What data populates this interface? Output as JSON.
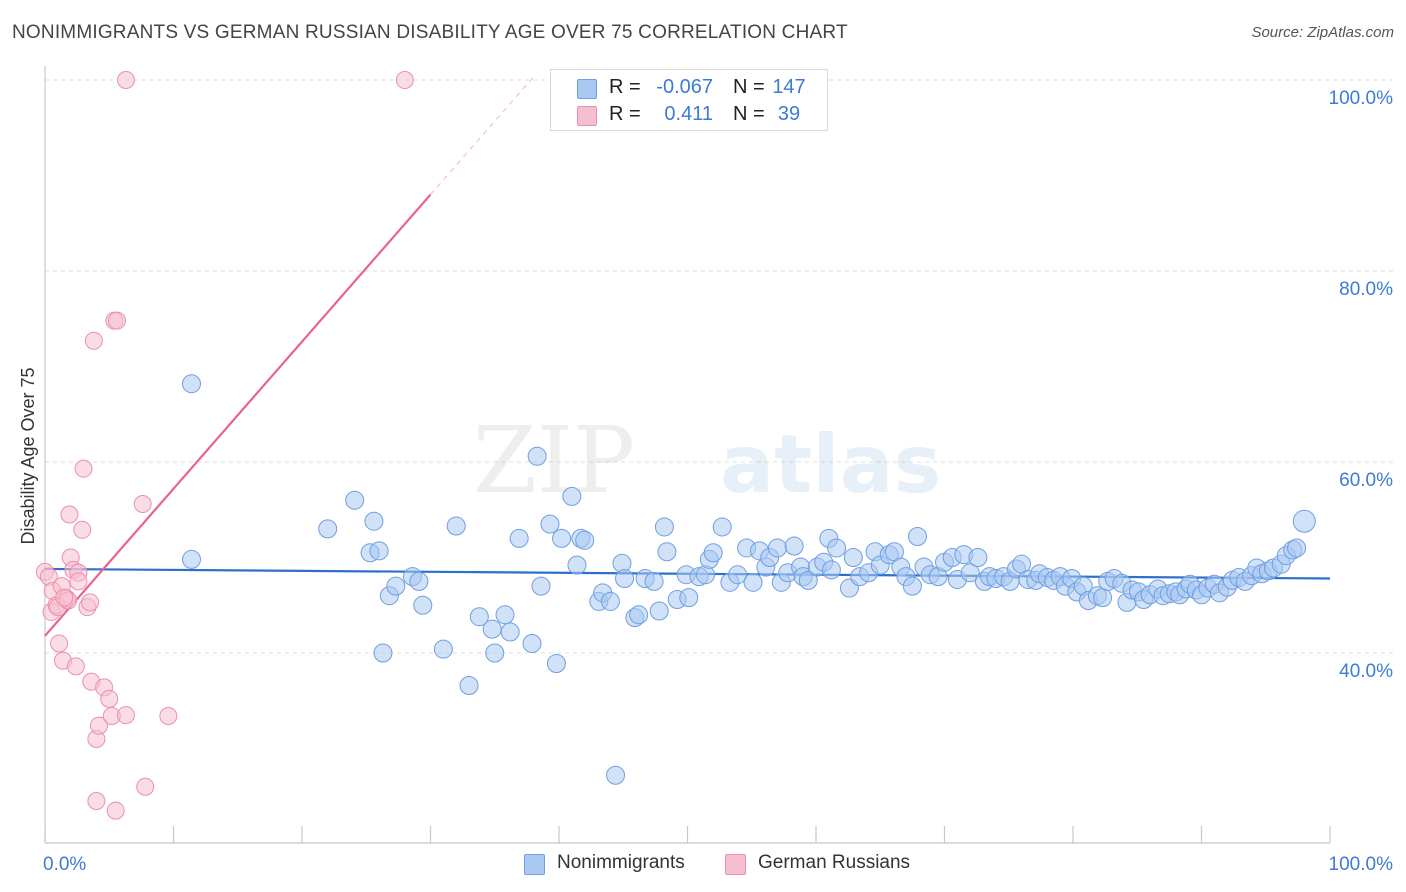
{
  "title": "NONIMMIGRANTS VS GERMAN RUSSIAN DISABILITY AGE OVER 75 CORRELATION CHART",
  "source": "Source: ZipAtlas.com",
  "watermark": {
    "part1": "ZIP",
    "part2": "atlas"
  },
  "legend": {
    "series1": {
      "r_label": "R =",
      "r_value": "-0.067",
      "n_label": "N =",
      "n_value": "147"
    },
    "series2": {
      "r_label": "R =",
      "r_value": "0.411",
      "n_label": "N =",
      "n_value": "39"
    }
  },
  "bottom_legend": {
    "series1": "Nonimmigrants",
    "series2": "German Russians"
  },
  "colors": {
    "blue_fill": "#a9c8f2",
    "blue_stroke": "#6f9fe0",
    "blue_line": "#2d6fcc",
    "pink_fill": "#f6bfd0",
    "pink_stroke": "#ec8fad",
    "pink_line": "#e8648f",
    "tick_text": "#3d7bd4",
    "grid": "#dddddd"
  },
  "chart_data": {
    "type": "scatter",
    "title": "NONIMMIGRANTS VS GERMAN RUSSIAN DISABILITY AGE OVER 75 CORRELATION CHART",
    "xlabel": "",
    "ylabel": "Disability Age Over 75",
    "xlim": [
      0,
      100
    ],
    "ylim": [
      20,
      102
    ],
    "x_tick_labels": [
      "0.0%",
      "100.0%"
    ],
    "y_ticks": [
      40,
      60,
      80,
      100
    ],
    "y_tick_labels": [
      "40.0%",
      "60.0%",
      "80.0%",
      "100.0%"
    ],
    "series": [
      {
        "name": "Nonimmigrants",
        "r": -0.067,
        "n": 147,
        "trend": {
          "x": [
            0,
            100
          ],
          "y": [
            48.8,
            47.8
          ]
        },
        "points": [
          [
            11.4,
            49.8
          ],
          [
            11.4,
            68.2
          ],
          [
            22.0,
            53.0
          ],
          [
            24.1,
            56.0
          ],
          [
            25.3,
            50.5
          ],
          [
            25.6,
            53.8
          ],
          [
            26.0,
            50.7
          ],
          [
            26.3,
            40.0
          ],
          [
            26.8,
            46.0
          ],
          [
            27.3,
            47.0
          ],
          [
            28.6,
            48.0
          ],
          [
            29.1,
            47.5
          ],
          [
            29.4,
            45.0
          ],
          [
            31.0,
            40.4
          ],
          [
            32.0,
            53.3
          ],
          [
            33.0,
            36.6
          ],
          [
            33.8,
            43.8
          ],
          [
            34.8,
            42.5
          ],
          [
            35.0,
            40.0
          ],
          [
            35.8,
            44.0
          ],
          [
            36.2,
            42.2
          ],
          [
            36.9,
            52.0
          ],
          [
            37.9,
            41.0
          ],
          [
            38.3,
            60.6
          ],
          [
            38.6,
            47.0
          ],
          [
            39.3,
            53.5
          ],
          [
            39.8,
            38.9
          ],
          [
            40.2,
            52.0
          ],
          [
            41.0,
            56.4
          ],
          [
            41.4,
            49.2
          ],
          [
            41.7,
            52.0
          ],
          [
            42.0,
            51.8
          ],
          [
            43.1,
            45.4
          ],
          [
            43.4,
            46.3
          ],
          [
            44.0,
            45.4
          ],
          [
            44.4,
            27.2
          ],
          [
            44.9,
            49.4
          ],
          [
            45.1,
            47.8
          ],
          [
            45.9,
            43.7
          ],
          [
            46.2,
            44.0
          ],
          [
            46.7,
            47.8
          ],
          [
            47.4,
            47.5
          ],
          [
            47.8,
            44.4
          ],
          [
            48.2,
            53.2
          ],
          [
            48.4,
            50.6
          ],
          [
            49.2,
            45.6
          ],
          [
            49.9,
            48.2
          ],
          [
            50.1,
            45.8
          ],
          [
            50.9,
            48.0
          ],
          [
            51.4,
            48.2
          ],
          [
            51.7,
            49.8
          ],
          [
            52.0,
            50.5
          ],
          [
            52.7,
            53.2
          ],
          [
            53.3,
            47.4
          ],
          [
            53.9,
            48.2
          ],
          [
            54.6,
            51.0
          ],
          [
            55.1,
            47.4
          ],
          [
            55.6,
            50.7
          ],
          [
            56.1,
            49.0
          ],
          [
            56.4,
            50.0
          ],
          [
            57.0,
            51.0
          ],
          [
            57.3,
            47.4
          ],
          [
            57.8,
            48.4
          ],
          [
            58.3,
            51.2
          ],
          [
            58.8,
            49.0
          ],
          [
            59.0,
            48.0
          ],
          [
            59.4,
            47.6
          ],
          [
            60.1,
            49.0
          ],
          [
            60.6,
            49.5
          ],
          [
            61.0,
            52.0
          ],
          [
            61.2,
            48.7
          ],
          [
            61.6,
            51.0
          ],
          [
            62.6,
            46.8
          ],
          [
            62.9,
            50.0
          ],
          [
            63.4,
            48.0
          ],
          [
            64.1,
            48.4
          ],
          [
            64.6,
            50.6
          ],
          [
            65.0,
            49.2
          ],
          [
            65.7,
            50.3
          ],
          [
            66.1,
            50.6
          ],
          [
            66.6,
            49.0
          ],
          [
            67.0,
            48.0
          ],
          [
            67.5,
            47.0
          ],
          [
            67.9,
            52.2
          ],
          [
            68.4,
            49.0
          ],
          [
            68.9,
            48.2
          ],
          [
            69.5,
            48.0
          ],
          [
            70.0,
            49.5
          ],
          [
            70.6,
            50.0
          ],
          [
            71.0,
            47.7
          ],
          [
            71.5,
            50.3
          ],
          [
            72.0,
            48.4
          ],
          [
            72.6,
            50.0
          ],
          [
            73.1,
            47.5
          ],
          [
            73.5,
            48.0
          ],
          [
            74.0,
            47.8
          ],
          [
            74.6,
            48.0
          ],
          [
            75.1,
            47.5
          ],
          [
            75.6,
            48.8
          ],
          [
            76.0,
            49.3
          ],
          [
            76.5,
            47.7
          ],
          [
            77.1,
            47.6
          ],
          [
            77.4,
            48.3
          ],
          [
            78.0,
            47.9
          ],
          [
            78.5,
            47.6
          ],
          [
            79.0,
            48.0
          ],
          [
            79.4,
            47.0
          ],
          [
            79.9,
            47.8
          ],
          [
            80.3,
            46.4
          ],
          [
            80.8,
            47.0
          ],
          [
            81.2,
            45.5
          ],
          [
            81.9,
            46.0
          ],
          [
            82.3,
            45.8
          ],
          [
            82.7,
            47.5
          ],
          [
            83.2,
            47.8
          ],
          [
            83.8,
            47.3
          ],
          [
            84.2,
            45.3
          ],
          [
            84.6,
            46.6
          ],
          [
            85.1,
            46.4
          ],
          [
            85.5,
            45.6
          ],
          [
            86.0,
            46.1
          ],
          [
            86.6,
            46.7
          ],
          [
            87.0,
            46.0
          ],
          [
            87.5,
            46.2
          ],
          [
            88.0,
            46.4
          ],
          [
            88.3,
            46.1
          ],
          [
            88.8,
            46.7
          ],
          [
            89.1,
            47.2
          ],
          [
            89.6,
            46.6
          ],
          [
            90.0,
            46.1
          ],
          [
            90.5,
            46.8
          ],
          [
            91.0,
            47.2
          ],
          [
            91.4,
            46.3
          ],
          [
            92.0,
            46.9
          ],
          [
            92.4,
            47.6
          ],
          [
            92.9,
            47.9
          ],
          [
            93.4,
            47.5
          ],
          [
            93.9,
            48.1
          ],
          [
            94.3,
            48.9
          ],
          [
            94.7,
            48.3
          ],
          [
            95.2,
            48.6
          ],
          [
            95.6,
            48.9
          ],
          [
            96.2,
            49.3
          ],
          [
            96.6,
            50.2
          ],
          [
            97.1,
            50.8
          ],
          [
            98.0,
            53.8
          ],
          [
            97.4,
            51.0
          ]
        ]
      },
      {
        "name": "German Russians",
        "r": 0.411,
        "n": 39,
        "trend": {
          "x": [
            0,
            30
          ],
          "y": [
            41.8,
            88.0
          ],
          "dashed_extension": {
            "x": [
              30,
              38
            ],
            "y": [
              88.0,
              100.3
            ]
          }
        },
        "points": [
          [
            0.0,
            48.5
          ],
          [
            0.3,
            48.0
          ],
          [
            0.5,
            44.3
          ],
          [
            0.6,
            46.5
          ],
          [
            0.9,
            45.0
          ],
          [
            1.0,
            44.8
          ],
          [
            1.1,
            41.0
          ],
          [
            1.3,
            47.0
          ],
          [
            1.4,
            39.2
          ],
          [
            1.7,
            45.7
          ],
          [
            1.8,
            45.5
          ],
          [
            1.9,
            54.5
          ],
          [
            2.0,
            50.0
          ],
          [
            2.2,
            48.7
          ],
          [
            2.4,
            38.6
          ],
          [
            2.6,
            48.4
          ],
          [
            2.9,
            52.9
          ],
          [
            3.0,
            59.3
          ],
          [
            3.3,
            44.8
          ],
          [
            3.5,
            45.3
          ],
          [
            3.6,
            37.0
          ],
          [
            3.8,
            72.7
          ],
          [
            4.0,
            31.0
          ],
          [
            4.2,
            32.4
          ],
          [
            4.6,
            36.4
          ],
          [
            5.0,
            35.2
          ],
          [
            5.2,
            33.4
          ],
          [
            5.4,
            74.8
          ],
          [
            5.5,
            23.5
          ],
          [
            5.6,
            74.8
          ],
          [
            6.3,
            33.5
          ],
          [
            7.6,
            55.6
          ],
          [
            7.8,
            26.0
          ],
          [
            9.6,
            33.4
          ],
          [
            6.3,
            100.0
          ],
          [
            28.0,
            100.0
          ],
          [
            2.6,
            47.5
          ],
          [
            4.0,
            24.5
          ],
          [
            1.5,
            45.8
          ]
        ]
      }
    ]
  }
}
